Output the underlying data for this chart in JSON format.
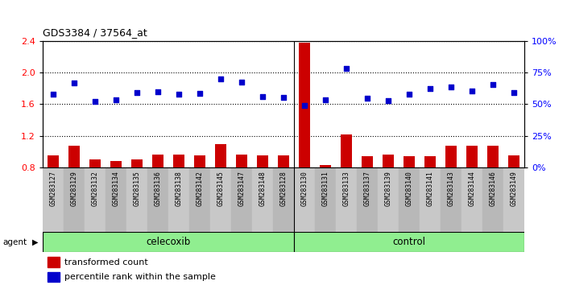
{
  "title": "GDS3384 / 37564_at",
  "samples": [
    "GSM283127",
    "GSM283129",
    "GSM283132",
    "GSM283134",
    "GSM283135",
    "GSM283136",
    "GSM283138",
    "GSM283142",
    "GSM283145",
    "GSM283147",
    "GSM283148",
    "GSM283128",
    "GSM283130",
    "GSM283131",
    "GSM283133",
    "GSM283137",
    "GSM283139",
    "GSM283140",
    "GSM283141",
    "GSM283143",
    "GSM283144",
    "GSM283146",
    "GSM283149"
  ],
  "bar_values": [
    0.95,
    1.08,
    0.9,
    0.88,
    0.9,
    0.96,
    0.96,
    0.95,
    1.1,
    0.96,
    0.95,
    0.95,
    2.38,
    0.83,
    1.22,
    0.94,
    0.96,
    0.94,
    0.94,
    1.08,
    1.08,
    1.08,
    0.95
  ],
  "dot_values": [
    1.73,
    1.87,
    1.63,
    1.65,
    1.75,
    1.76,
    1.73,
    1.74,
    1.92,
    1.88,
    1.7,
    1.69,
    1.58,
    1.65,
    2.05,
    1.68,
    1.64,
    1.73,
    1.8,
    1.82,
    1.77,
    1.85,
    1.75
  ],
  "celecoxib_count": 12,
  "control_count": 11,
  "ylim_left": [
    0.8,
    2.4
  ],
  "ylim_right": [
    0,
    100
  ],
  "yticks_left": [
    0.8,
    1.2,
    1.6,
    2.0,
    2.4
  ],
  "yticks_right_vals": [
    0,
    25,
    50,
    75,
    100
  ],
  "yticks_right_labels": [
    "0%",
    "25%",
    "50%",
    "75%",
    "100%"
  ],
  "bar_color": "#cc0000",
  "dot_color": "#0000cc",
  "agent_box_color": "#90ee90",
  "separator_index": 12,
  "sample_label_bg1": "#c8c8c8",
  "sample_label_bg2": "#b8b8b8"
}
